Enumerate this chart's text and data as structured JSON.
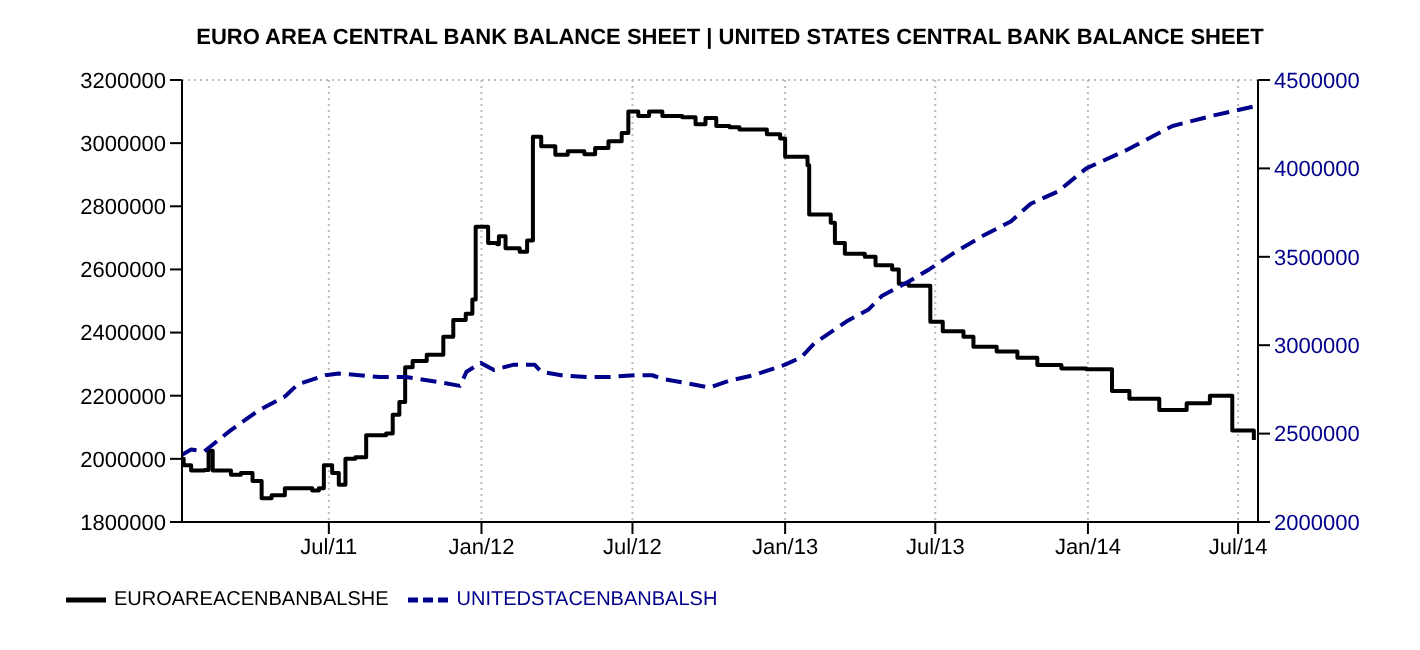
{
  "chart_data": {
    "type": "line",
    "title": "EURO AREA CENTRAL BANK BALANCE SHEET  |  UNITED STATES CENTRAL BANK BALANCE SHEET",
    "xlim": [
      "2011-01-05",
      "2014-07-25"
    ],
    "xticks": [
      {
        "value": "2011-07-01",
        "label": "Jul/11"
      },
      {
        "value": "2012-01-01",
        "label": "Jan/12"
      },
      {
        "value": "2012-07-01",
        "label": "Jul/12"
      },
      {
        "value": "2013-01-01",
        "label": "Jan/13"
      },
      {
        "value": "2013-07-01",
        "label": "Jul/13"
      },
      {
        "value": "2014-01-01",
        "label": "Jan/14"
      },
      {
        "value": "2014-07-01",
        "label": "Jul/14"
      }
    ],
    "ylim": [
      1800000,
      3200000
    ],
    "yticks": [
      1800000,
      2000000,
      2200000,
      2400000,
      2600000,
      2800000,
      3000000,
      3200000
    ],
    "y2lim": [
      2000000,
      4500000
    ],
    "y2ticks": [
      2000000,
      2500000,
      3000000,
      3500000,
      4000000,
      4500000
    ],
    "grid": true,
    "legend": "bottom left",
    "series": [
      {
        "name": "EUROAREACENBANBALSHE",
        "type": "step",
        "color": "#000000",
        "line_style": "solid",
        "x": [
          "2011-01-05",
          "2011-01-07",
          "2011-01-16",
          "2011-02-01",
          "2011-02-06",
          "2011-02-11",
          "2011-03-05",
          "2011-03-17",
          "2011-03-31",
          "2011-04-11",
          "2011-04-23",
          "2011-05-09",
          "2011-06-11",
          "2011-06-19",
          "2011-06-25",
          "2011-07-05",
          "2011-07-13",
          "2011-07-21",
          "2011-08-02",
          "2011-08-15",
          "2011-09-08",
          "2011-09-16",
          "2011-09-24",
          "2011-10-01",
          "2011-10-10",
          "2011-10-27",
          "2011-11-16",
          "2011-11-28",
          "2011-12-13",
          "2011-12-21",
          "2011-12-25",
          "2012-01-06",
          "2012-01-09",
          "2012-01-20",
          "2012-01-22",
          "2012-01-30",
          "2012-02-16",
          "2012-02-25",
          "2012-03-03",
          "2012-03-13",
          "2012-03-30",
          "2012-04-14",
          "2012-05-04",
          "2012-05-17",
          "2012-06-02",
          "2012-06-18",
          "2012-06-26",
          "2012-07-08",
          "2012-07-21",
          "2012-08-06",
          "2012-08-30",
          "2012-09-15",
          "2012-09-27",
          "2012-10-10",
          "2012-10-26",
          "2012-11-07",
          "2012-12-10",
          "2012-12-26",
          "2013-01-01",
          "2013-01-28",
          "2013-01-30",
          "2013-02-25",
          "2013-03-02",
          "2013-03-14",
          "2013-04-07",
          "2013-04-20",
          "2013-05-10",
          "2013-05-18",
          "2013-05-30",
          "2013-06-25",
          "2013-07-10",
          "2013-08-04",
          "2013-08-16",
          "2013-09-13",
          "2013-10-08",
          "2013-11-01",
          "2013-11-30",
          "2013-12-30",
          "2014-01-30",
          "2014-02-20",
          "2014-03-28",
          "2014-04-30",
          "2014-05-28",
          "2014-06-24",
          "2014-07-20"
        ],
        "values": [
          2000000,
          1980000,
          1963000,
          1965000,
          2026000,
          1963000,
          1950000,
          1955000,
          1930000,
          1875000,
          1885000,
          1907000,
          1900000,
          1907000,
          1980000,
          1955000,
          1918000,
          2000000,
          2005000,
          2075000,
          2080000,
          2140000,
          2180000,
          2290000,
          2310000,
          2330000,
          2387000,
          2440000,
          2460000,
          2505000,
          2735000,
          2735000,
          2684000,
          2680000,
          2705000,
          2667000,
          2656000,
          2692000,
          3020000,
          2990000,
          2963000,
          2974000,
          2965000,
          2985000,
          3006000,
          3032000,
          3100000,
          3086000,
          3100000,
          3086000,
          3082000,
          3060000,
          3080000,
          3054000,
          3050000,
          3043000,
          3028000,
          3015000,
          2957000,
          2930000,
          2774000,
          2748000,
          2684000,
          2650000,
          2640000,
          2613000,
          2600000,
          2555000,
          2548000,
          2434000,
          2404000,
          2387000,
          2355000,
          2340000,
          2320000,
          2297000,
          2286000,
          2284000,
          2215000,
          2190000,
          2155000,
          2176000,
          2200000,
          2090000,
          2060000
        ]
      },
      {
        "name": "UNITEDSTACENBANBALSH",
        "type": "line",
        "axis": "y2",
        "color": "#00008b",
        "line_style": "dashed",
        "x": [
          "2011-01-05",
          "2011-01-16",
          "2011-02-01",
          "2011-02-09",
          "2011-03-05",
          "2011-04-07",
          "2011-05-09",
          "2011-05-25",
          "2011-06-27",
          "2011-07-13",
          "2011-08-31",
          "2011-10-02",
          "2011-11-12",
          "2011-12-06",
          "2011-12-14",
          "2011-12-31",
          "2012-01-16",
          "2012-02-09",
          "2012-03-05",
          "2012-03-13",
          "2012-04-06",
          "2012-05-08",
          "2012-06-02",
          "2012-07-05",
          "2012-07-25",
          "2012-08-06",
          "2012-08-30",
          "2012-10-02",
          "2012-10-26",
          "2012-11-24",
          "2013-01-01",
          "2013-01-20",
          "2013-02-05",
          "2013-03-02",
          "2013-03-18",
          "2013-04-11",
          "2013-04-28",
          "2013-05-30",
          "2013-06-24",
          "2013-07-26",
          "2013-08-28",
          "2013-09-30",
          "2013-10-24",
          "2013-11-26",
          "2013-12-30",
          "2014-02-15",
          "2014-04-13",
          "2014-06-02",
          "2014-07-20"
        ],
        "values": [
          2380000,
          2410000,
          2400000,
          2430000,
          2520000,
          2630000,
          2710000,
          2780000,
          2830000,
          2840000,
          2820000,
          2820000,
          2790000,
          2770000,
          2850000,
          2900000,
          2860000,
          2890000,
          2890000,
          2850000,
          2830000,
          2820000,
          2820000,
          2830000,
          2830000,
          2810000,
          2790000,
          2760000,
          2800000,
          2830000,
          2890000,
          2930000,
          3010000,
          3090000,
          3140000,
          3200000,
          3280000,
          3360000,
          3430000,
          3530000,
          3620000,
          3700000,
          3800000,
          3870000,
          4000000,
          4100000,
          4240000,
          4300000,
          4350000
        ]
      }
    ]
  }
}
